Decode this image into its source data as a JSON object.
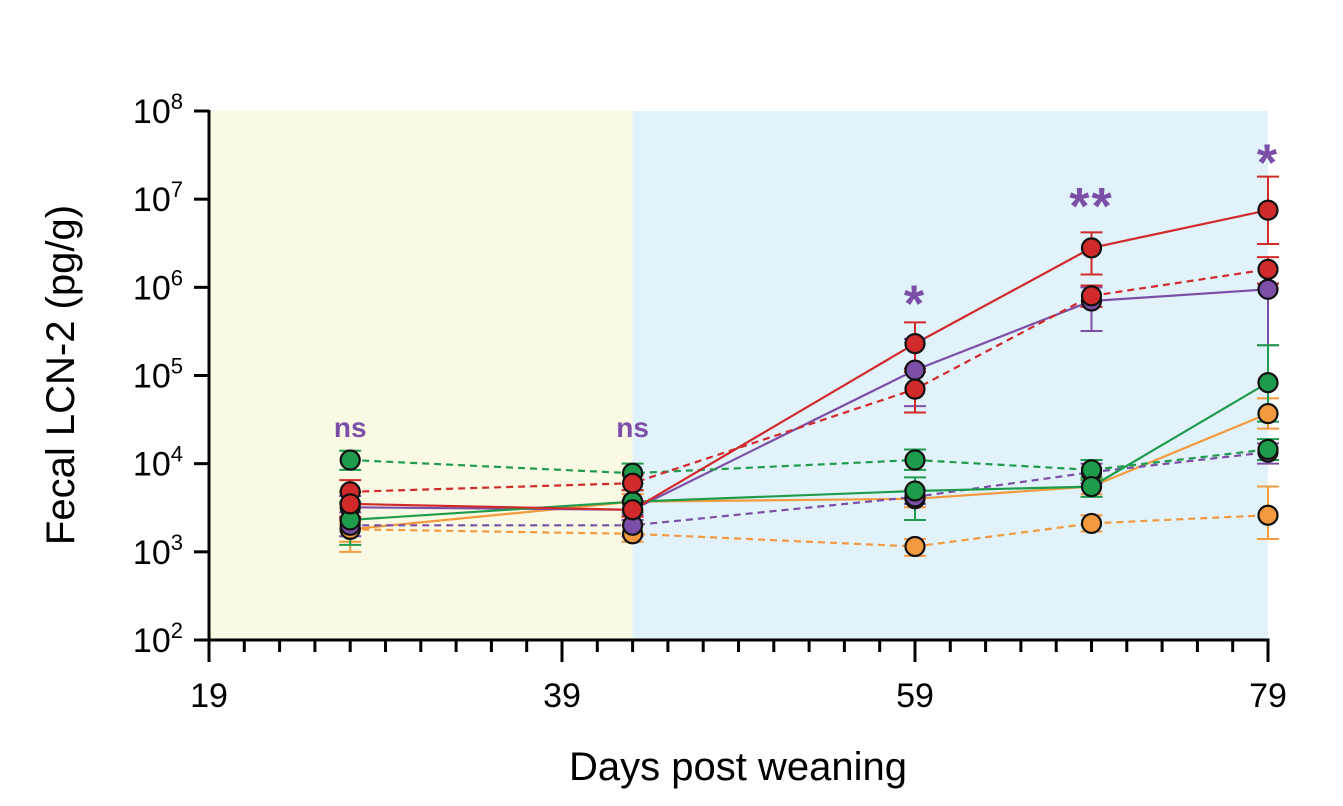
{
  "chart_data": {
    "type": "line",
    "title": "",
    "xlabel": "Days post weaning",
    "ylabel": "Fecal LCN-2 (pg/g)",
    "xlim": [
      19,
      79
    ],
    "ylim_log10": [
      2,
      8
    ],
    "y_scale": "log",
    "x_ticks": [
      {
        "value": 19,
        "label": "19"
      },
      {
        "value": 39,
        "label": "39"
      },
      {
        "value": 59,
        "label": "59"
      },
      {
        "value": 79,
        "label": "79"
      }
    ],
    "y_ticks": [
      {
        "exp": 2,
        "base": "10",
        "sup": "2"
      },
      {
        "exp": 3,
        "base": "10",
        "sup": "3"
      },
      {
        "exp": 4,
        "base": "10",
        "sup": "4"
      },
      {
        "exp": 5,
        "base": "10",
        "sup": "5"
      },
      {
        "exp": 6,
        "base": "10",
        "sup": "6"
      },
      {
        "exp": 7,
        "base": "10",
        "sup": "7"
      },
      {
        "exp": 8,
        "base": "10",
        "sup": "8"
      }
    ],
    "minor_x_step": 2,
    "background_regions": [
      {
        "from": 19,
        "to": 43,
        "color": "#f9f9e4"
      },
      {
        "from": 43,
        "to": 79,
        "color": "#e2f2fa"
      }
    ],
    "x": [
      27,
      43,
      59,
      69,
      79
    ],
    "series": [
      {
        "name": "orange-dashed",
        "color": "#f39a3e",
        "dashed": true,
        "values": [
          1800,
          1600,
          1150,
          2100,
          2600
        ],
        "err_lo": [
          1000,
          1300,
          900,
          1700,
          1400
        ],
        "err_hi": [
          2200,
          2000,
          1400,
          2600,
          5500
        ]
      },
      {
        "name": "orange-solid",
        "color": "#f39a3e",
        "dashed": false,
        "values": [
          1800,
          3700,
          4000,
          5500,
          37000
        ],
        "err_lo": [
          1300,
          3000,
          3200,
          4500,
          25000
        ],
        "err_hi": [
          2300,
          4500,
          5000,
          6800,
          55000
        ]
      },
      {
        "name": "purple-dashed",
        "color": "#7b4fa8",
        "dashed": true,
        "values": [
          2000,
          2000,
          4200,
          8000,
          13500
        ],
        "err_lo": [
          1500,
          1500,
          3500,
          6000,
          10000
        ],
        "err_hi": [
          2800,
          2600,
          5000,
          10000,
          17000
        ]
      },
      {
        "name": "purple-solid",
        "color": "#7b4fa8",
        "dashed": false,
        "values": [
          3200,
          3000,
          115000,
          700000,
          950000
        ],
        "err_lo": [
          2400,
          2300,
          45000,
          320000,
          220000
        ],
        "err_hi": [
          4300,
          3800,
          260000,
          1000000,
          1100000
        ]
      },
      {
        "name": "green-dashed",
        "color": "#1e9c4c",
        "dashed": true,
        "values": [
          11000,
          7800,
          11000,
          8500,
          14500
        ],
        "err_lo": [
          8500,
          6000,
          8500,
          6500,
          11000
        ],
        "err_hi": [
          14000,
          10000,
          14500,
          11000,
          19000
        ]
      },
      {
        "name": "green-solid",
        "color": "#1e9c4c",
        "dashed": false,
        "values": [
          2300,
          3700,
          4900,
          5500,
          83000
        ],
        "err_lo": [
          1200,
          2800,
          2300,
          4200,
          30000
        ],
        "err_hi": [
          3700,
          5000,
          7000,
          7000,
          220000
        ]
      },
      {
        "name": "red-dashed",
        "color": "#d12a2a",
        "dashed": true,
        "values": [
          4800,
          6000,
          70000,
          800000,
          1600000
        ],
        "err_lo": [
          3500,
          5000,
          38000,
          600000,
          1100000
        ],
        "err_hi": [
          6500,
          7500,
          110000,
          1050000,
          2200000
        ]
      },
      {
        "name": "red-solid",
        "color": "#d12a2a",
        "dashed": false,
        "values": [
          3500,
          3000,
          230000,
          2800000,
          7500000
        ],
        "err_lo": [
          2500,
          2500,
          120000,
          1400000,
          3100000
        ],
        "err_hi": [
          4800,
          3600,
          400000,
          4200000,
          18000000
        ]
      }
    ],
    "annotations": [
      {
        "x": 27,
        "y_exp": 4.3,
        "text": "ns",
        "kind": "ns"
      },
      {
        "x": 43,
        "y_exp": 4.3,
        "text": "ns",
        "kind": "ns"
      },
      {
        "x": 59,
        "y_exp": 5.95,
        "text": "*",
        "kind": "star"
      },
      {
        "x": 69,
        "y_exp": 7.06,
        "text": "**",
        "kind": "star"
      },
      {
        "x": 79,
        "y_exp": 7.55,
        "text": "*",
        "kind": "star"
      }
    ]
  }
}
